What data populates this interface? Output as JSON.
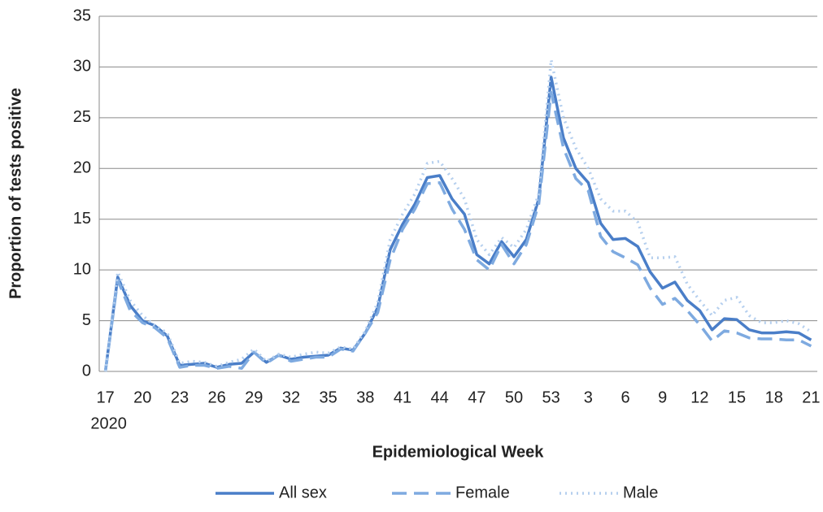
{
  "chart_data": {
    "type": "line",
    "x_label": "Epidemiological Week",
    "y_label": "Proportion of tests positive",
    "year_label": "2020",
    "categories": [
      "17",
      null,
      null,
      "20",
      null,
      null,
      "23",
      null,
      null,
      "26",
      null,
      null,
      "29",
      null,
      null,
      "32",
      null,
      null,
      "35",
      null,
      null,
      "38",
      null,
      null,
      "41",
      null,
      null,
      "44",
      null,
      null,
      "47",
      null,
      null,
      "50",
      null,
      null,
      "53",
      null,
      null,
      "3",
      null,
      null,
      "6",
      null,
      null,
      "9",
      null,
      null,
      "12",
      null,
      null,
      "15",
      null,
      null,
      "18",
      null,
      null,
      "21"
    ],
    "series": [
      {
        "name": "All sex",
        "color": "#4a7ec8",
        "dash": "solid",
        "values": [
          0,
          9.3,
          6.5,
          5,
          4.5,
          3.5,
          0.6,
          0.7,
          0.8,
          0.4,
          0.7,
          0.8,
          1.9,
          0.9,
          1.6,
          1.2,
          1.4,
          1.5,
          1.6,
          2.3,
          2.1,
          3.8,
          6.3,
          12,
          14.5,
          16.5,
          19.1,
          19.3,
          17,
          15.5,
          11.5,
          10.6,
          12.8,
          11.3,
          13,
          17,
          29,
          23,
          20,
          18.6,
          14.6,
          13,
          13.1,
          12.3,
          9.8,
          8.2,
          8.8,
          7,
          6,
          4.1,
          5.2,
          5.1,
          4.1,
          3.8,
          3.8,
          3.9,
          3.8,
          3.1
        ]
      },
      {
        "name": "Female",
        "color": "#7eaae0",
        "dash": "dashed",
        "values": [
          0,
          9,
          6,
          4.8,
          4.3,
          3.3,
          0.4,
          0.6,
          0.6,
          0.3,
          0.5,
          0.3,
          1.9,
          0.8,
          1.6,
          1,
          1.2,
          1.4,
          1.4,
          2.2,
          2,
          3.8,
          5.8,
          11,
          14,
          16,
          18.5,
          18.6,
          16,
          14,
          11,
          10,
          12.5,
          10.6,
          12.5,
          16.5,
          27.5,
          22,
          19,
          17.8,
          13.3,
          11.8,
          11.2,
          10.5,
          8.2,
          6.6,
          7.2,
          6,
          4.6,
          3,
          4,
          3.8,
          3.3,
          3.2,
          3.2,
          3.1,
          3.1,
          2.5
        ]
      },
      {
        "name": "Male",
        "color": "#b5cfee",
        "dash": "dotted",
        "values": [
          0,
          9.8,
          7,
          5.5,
          4.5,
          3.8,
          0.8,
          1,
          0.9,
          0.5,
          0.9,
          1.2,
          2.2,
          1,
          1.7,
          1.4,
          1.7,
          1.9,
          1.8,
          2.4,
          2.2,
          4,
          6.8,
          13,
          15.5,
          17.5,
          20.5,
          20.7,
          19,
          17,
          13,
          11.5,
          13.2,
          12.2,
          14,
          17.5,
          30.7,
          25,
          22,
          20,
          17,
          15.8,
          15.8,
          14.7,
          11.2,
          11.2,
          11.3,
          8.6,
          7,
          5.5,
          7,
          7.3,
          5.5,
          4.8,
          4.8,
          5,
          4.7,
          3.9
        ]
      }
    ],
    "ylim": [
      0,
      35
    ],
    "yticks": [
      0,
      5,
      10,
      15,
      20,
      25,
      30,
      35
    ],
    "grid": true,
    "legend": "bottom"
  }
}
